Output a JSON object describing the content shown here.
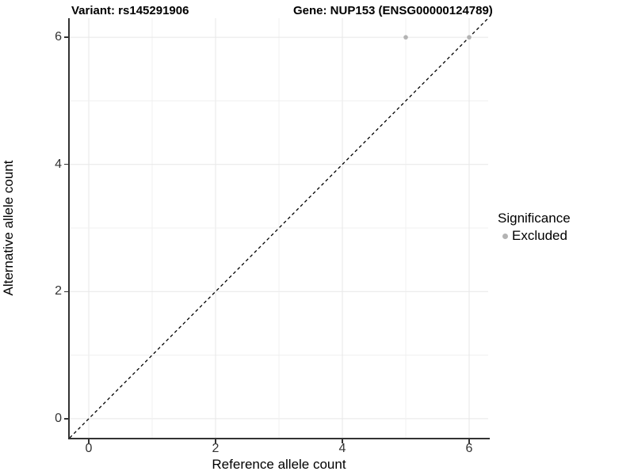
{
  "chart_data": {
    "type": "scatter",
    "title_left": "Variant: rs145291906",
    "title_right": "Gene: NUP153 (ENSG00000124789)",
    "xlabel": "Reference allele count",
    "ylabel": "Alternative allele count",
    "xlim": [
      -0.3,
      6.3
    ],
    "ylim": [
      -0.3,
      6.3
    ],
    "x_ticks": [
      0,
      2,
      4,
      6
    ],
    "y_ticks": [
      0,
      2,
      4,
      6
    ],
    "gridlines": [
      0,
      1,
      2,
      3,
      4,
      5,
      6
    ],
    "grid": true,
    "identity_line": {
      "style": "dashed",
      "color": "#000000",
      "from": [
        -0.3,
        -0.3
      ],
      "to": [
        6.3,
        6.3
      ]
    },
    "series": [
      {
        "name": "Excluded",
        "color": "#b3b3b3",
        "points": [
          {
            "x": 5,
            "y": 6
          },
          {
            "x": 6,
            "y": 6
          }
        ]
      }
    ],
    "legend": {
      "title": "Significance",
      "position": "right",
      "items": [
        {
          "label": "Excluded",
          "color": "#b3b3b3"
        }
      ]
    },
    "colors": {
      "axis_line": "#333333",
      "tick_label": "#333333",
      "major_grid": "#e7e7e7",
      "minor_grid": "#f0f0f0",
      "background": "#ffffff"
    }
  }
}
